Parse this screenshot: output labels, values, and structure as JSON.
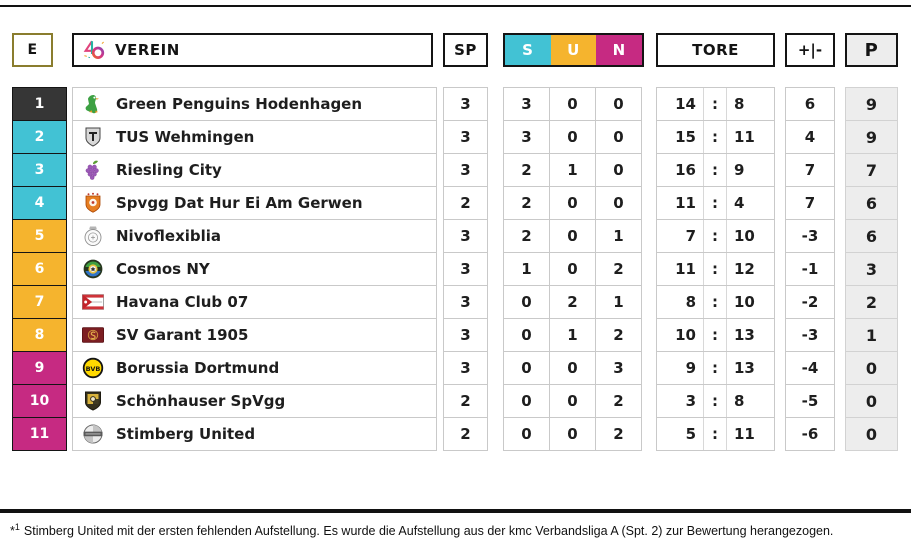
{
  "labels": {
    "position": "E",
    "club": "VEREIN",
    "played": "SP",
    "wins": "S",
    "draws": "U",
    "losses": "N",
    "goals": "TORE",
    "diff": "+|-",
    "points": "P",
    "goals_separator": ":"
  },
  "colors": {
    "wins": "#42c2d4",
    "draws": "#f5b42e",
    "losses": "#c62a82",
    "leader": "#363636",
    "promotion": "#42c2d4",
    "mid": "#f5b42e",
    "relegation": "#c62a82",
    "points_bg": "#ededed",
    "header_border": "#141414",
    "position_box_border": "#8a7d2e"
  },
  "rows": [
    {
      "pos": "1",
      "zone": "leader",
      "logo": "green-penguin",
      "club": "Green Penguins Hodenhagen",
      "sp": "3",
      "s": "3",
      "u": "0",
      "n": "0",
      "gf": "14",
      "ga": "8",
      "diff": "6",
      "pts": "9"
    },
    {
      "pos": "2",
      "zone": "promotion",
      "logo": "gray-crest",
      "club": "TUS Wehmingen",
      "sp": "3",
      "s": "3",
      "u": "0",
      "n": "0",
      "gf": "15",
      "ga": "11",
      "diff": "4",
      "pts": "9"
    },
    {
      "pos": "3",
      "zone": "promotion",
      "logo": "grapes",
      "club": "Riesling City",
      "sp": "3",
      "s": "2",
      "u": "1",
      "n": "0",
      "gf": "16",
      "ga": "9",
      "diff": "7",
      "pts": "7"
    },
    {
      "pos": "4",
      "zone": "promotion",
      "logo": "orange-crest",
      "club": "Spvgg Dat Hur Ei Am Gerwen",
      "sp": "2",
      "s": "2",
      "u": "0",
      "n": "0",
      "gf": "11",
      "ga": "4",
      "diff": "7",
      "pts": "6"
    },
    {
      "pos": "5",
      "zone": "mid",
      "logo": "white-crest",
      "club": "Nivoflexiblia",
      "sp": "3",
      "s": "2",
      "u": "0",
      "n": "1",
      "gf": "7",
      "ga": "10",
      "diff": "-3",
      "pts": "6"
    },
    {
      "pos": "6",
      "zone": "mid",
      "logo": "cosmos",
      "club": "Cosmos NY",
      "sp": "3",
      "s": "1",
      "u": "0",
      "n": "2",
      "gf": "11",
      "ga": "12",
      "diff": "-1",
      "pts": "3"
    },
    {
      "pos": "7",
      "zone": "mid",
      "logo": "havana-flag",
      "club": "Havana Club 07",
      "sp": "3",
      "s": "0",
      "u": "2",
      "n": "1",
      "gf": "8",
      "ga": "10",
      "diff": "-2",
      "pts": "2"
    },
    {
      "pos": "8",
      "zone": "mid",
      "logo": "garant",
      "club": "SV Garant 1905",
      "sp": "3",
      "s": "0",
      "u": "1",
      "n": "2",
      "gf": "10",
      "ga": "13",
      "diff": "-3",
      "pts": "1"
    },
    {
      "pos": "9",
      "zone": "relegation",
      "logo": "bvb",
      "club": "Borussia Dortmund",
      "sp": "3",
      "s": "0",
      "u": "0",
      "n": "3",
      "gf": "9",
      "ga": "13",
      "diff": "-4",
      "pts": "0"
    },
    {
      "pos": "10",
      "zone": "relegation",
      "logo": "schoenhauser-crest",
      "club": "Schönhauser SpVgg",
      "sp": "2",
      "s": "0",
      "u": "0",
      "n": "2",
      "gf": "3",
      "ga": "8",
      "diff": "-5",
      "pts": "0"
    },
    {
      "pos": "11",
      "zone": "relegation",
      "logo": "stimberg-ball",
      "club": "Stimberg United",
      "sp": "2",
      "s": "0",
      "u": "0",
      "n": "2",
      "gf": "5",
      "ga": "11",
      "diff": "-6",
      "pts": "0"
    }
  ],
  "footnote": {
    "marker": "*",
    "sup": "1",
    "text": "Stimberg United mit der ersten fehlenden Aufstellung. Es wurde die Aufstellung aus der kmc Verbandsliga A (Spt. 2) zur Bewertung herangezogen."
  }
}
